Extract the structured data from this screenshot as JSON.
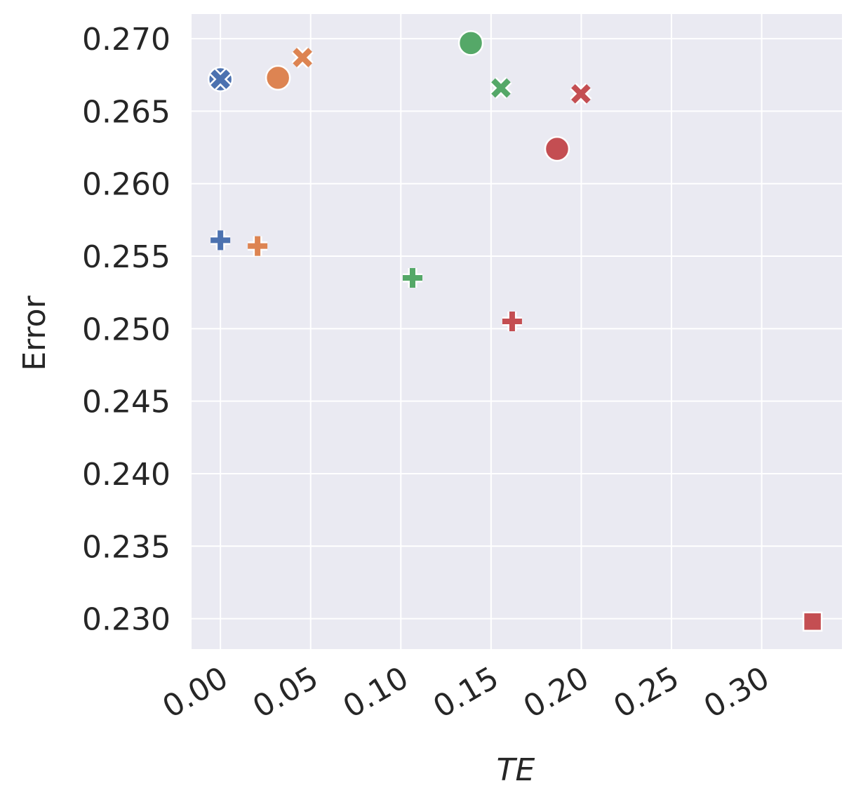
{
  "chart_data": {
    "type": "scatter",
    "xlabel": "TE",
    "ylabel": "Error",
    "xlim": [
      -0.016,
      0.3445
    ],
    "ylim": [
      0.2279,
      0.2717
    ],
    "xticks": [
      {
        "value": 0,
        "label": "0.00"
      },
      {
        "value": 0.05,
        "label": "0.05"
      },
      {
        "value": 0.1,
        "label": "0.10"
      },
      {
        "value": 0.15,
        "label": "0.15"
      },
      {
        "value": 0.2,
        "label": "0.20"
      },
      {
        "value": 0.25,
        "label": "0.25"
      },
      {
        "value": 0.3,
        "label": "0.30"
      }
    ],
    "yticks": [
      {
        "value": 0.23,
        "label": "0.230"
      },
      {
        "value": 0.235,
        "label": "0.235"
      },
      {
        "value": 0.24,
        "label": "0.240"
      },
      {
        "value": 0.245,
        "label": "0.245"
      },
      {
        "value": 0.25,
        "label": "0.250"
      },
      {
        "value": 0.255,
        "label": "0.255"
      },
      {
        "value": 0.26,
        "label": "0.260"
      },
      {
        "value": 0.265,
        "label": "0.265"
      },
      {
        "value": 0.27,
        "label": "0.270"
      }
    ],
    "grid": true,
    "series": [
      {
        "color": "#4c72b0",
        "markers": [
          "o",
          "x",
          "+"
        ],
        "x": [
          0,
          0,
          0
        ],
        "values": [
          0.2672,
          0.2672,
          0.2561
        ]
      },
      {
        "color": "#dd8452",
        "markers": [
          "o",
          "x",
          "+"
        ],
        "x": [
          0.0319,
          0.0455,
          0.0206
        ],
        "values": [
          0.2673,
          0.2687,
          0.2557
        ]
      },
      {
        "color": "#55a868",
        "markers": [
          "o",
          "x",
          "+"
        ],
        "x": [
          0.1388,
          0.1555,
          0.1065
        ],
        "values": [
          0.2697,
          0.2666,
          0.2535
        ]
      },
      {
        "color": "#c44e52",
        "markers": [
          "o",
          "x",
          "+",
          "s"
        ],
        "x": [
          0.1866,
          0.1998,
          0.1617,
          0.3282
        ],
        "values": [
          0.2624,
          0.2662,
          0.2505,
          0.2298
        ]
      }
    ]
  }
}
